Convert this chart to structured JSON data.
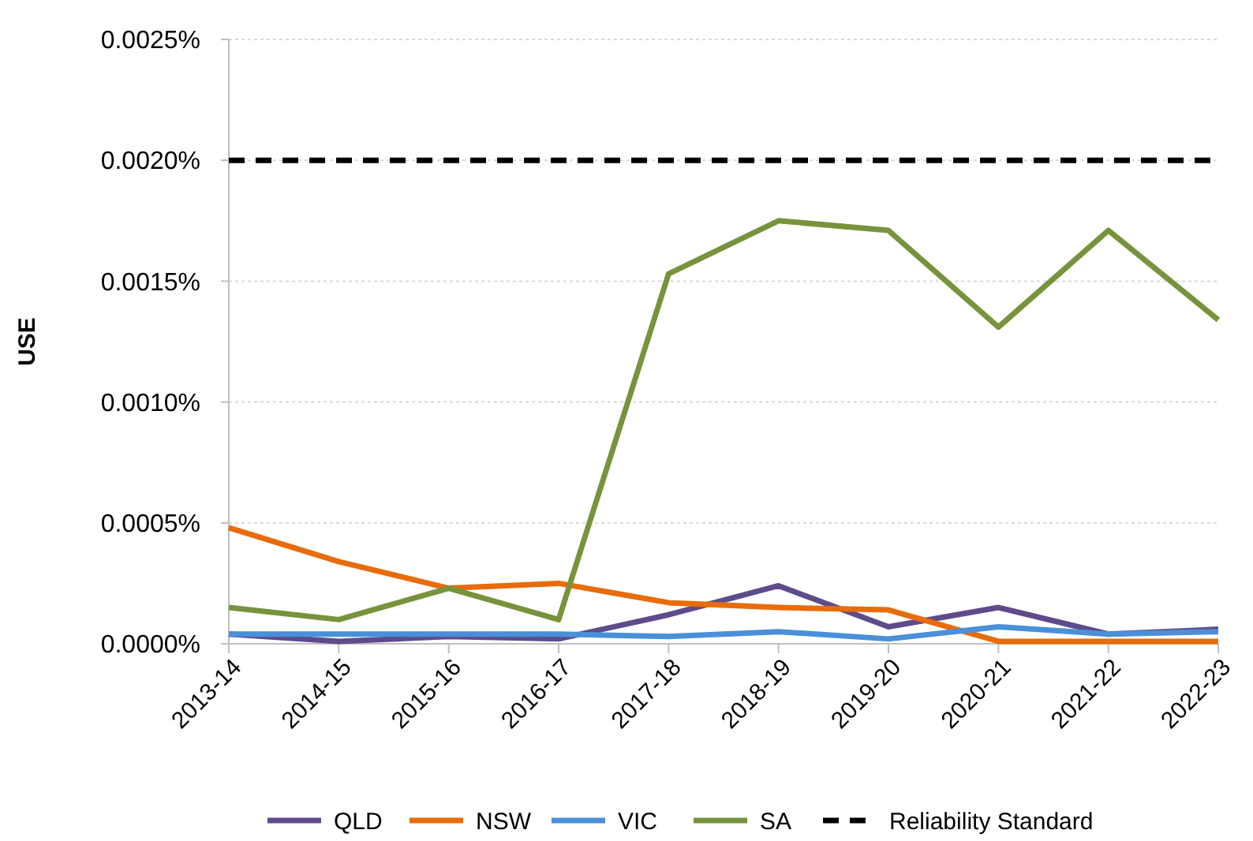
{
  "chart_data": {
    "type": "line",
    "ylabel": "USE",
    "categories": [
      "2013-14",
      "2014-15",
      "2015-16",
      "2016-17",
      "2017-18",
      "2018-19",
      "2019-20",
      "2020-21",
      "2021-22",
      "2022-23"
    ],
    "series": [
      {
        "name": "QLD",
        "color": "#5f4b8b",
        "values": [
          4e-05,
          1e-05,
          3e-05,
          2e-05,
          0.00012,
          0.00024,
          7e-05,
          0.00015,
          4e-05,
          6e-05
        ]
      },
      {
        "name": "NSW",
        "color": "#e86c0a",
        "values": [
          0.00048,
          0.00034,
          0.00023,
          0.00025,
          0.00017,
          0.00015,
          0.00014,
          1e-05,
          1e-05,
          1e-05
        ]
      },
      {
        "name": "VIC",
        "color": "#4a90d9",
        "values": [
          4e-05,
          4e-05,
          4e-05,
          4e-05,
          3e-05,
          5e-05,
          2e-05,
          7e-05,
          4e-05,
          5e-05
        ]
      },
      {
        "name": "SA",
        "color": "#77933c",
        "values": [
          0.00015,
          0.0001,
          0.00023,
          0.0001,
          0.00153,
          0.00175,
          0.00171,
          0.00131,
          0.00171,
          0.00134
        ]
      }
    ],
    "ylim": [
      0,
      0.0025
    ],
    "yticks": [
      {
        "value": 0,
        "label": "0.0000%"
      },
      {
        "value": 0.0005,
        "label": "0.0005%"
      },
      {
        "value": 0.001,
        "label": "0.0010%"
      },
      {
        "value": 0.0015,
        "label": "0.0015%"
      },
      {
        "value": 0.002,
        "label": "0.0020%"
      },
      {
        "value": 0.0025,
        "label": "0.0025%"
      }
    ],
    "ref_lines": [
      {
        "axis": "y",
        "value": 0.002,
        "label": "Reliability Standard",
        "color": "#000000",
        "line_style": "dashed"
      }
    ],
    "grid": "y",
    "legend": "bottom",
    "marker": "none",
    "line_style": "solid"
  }
}
